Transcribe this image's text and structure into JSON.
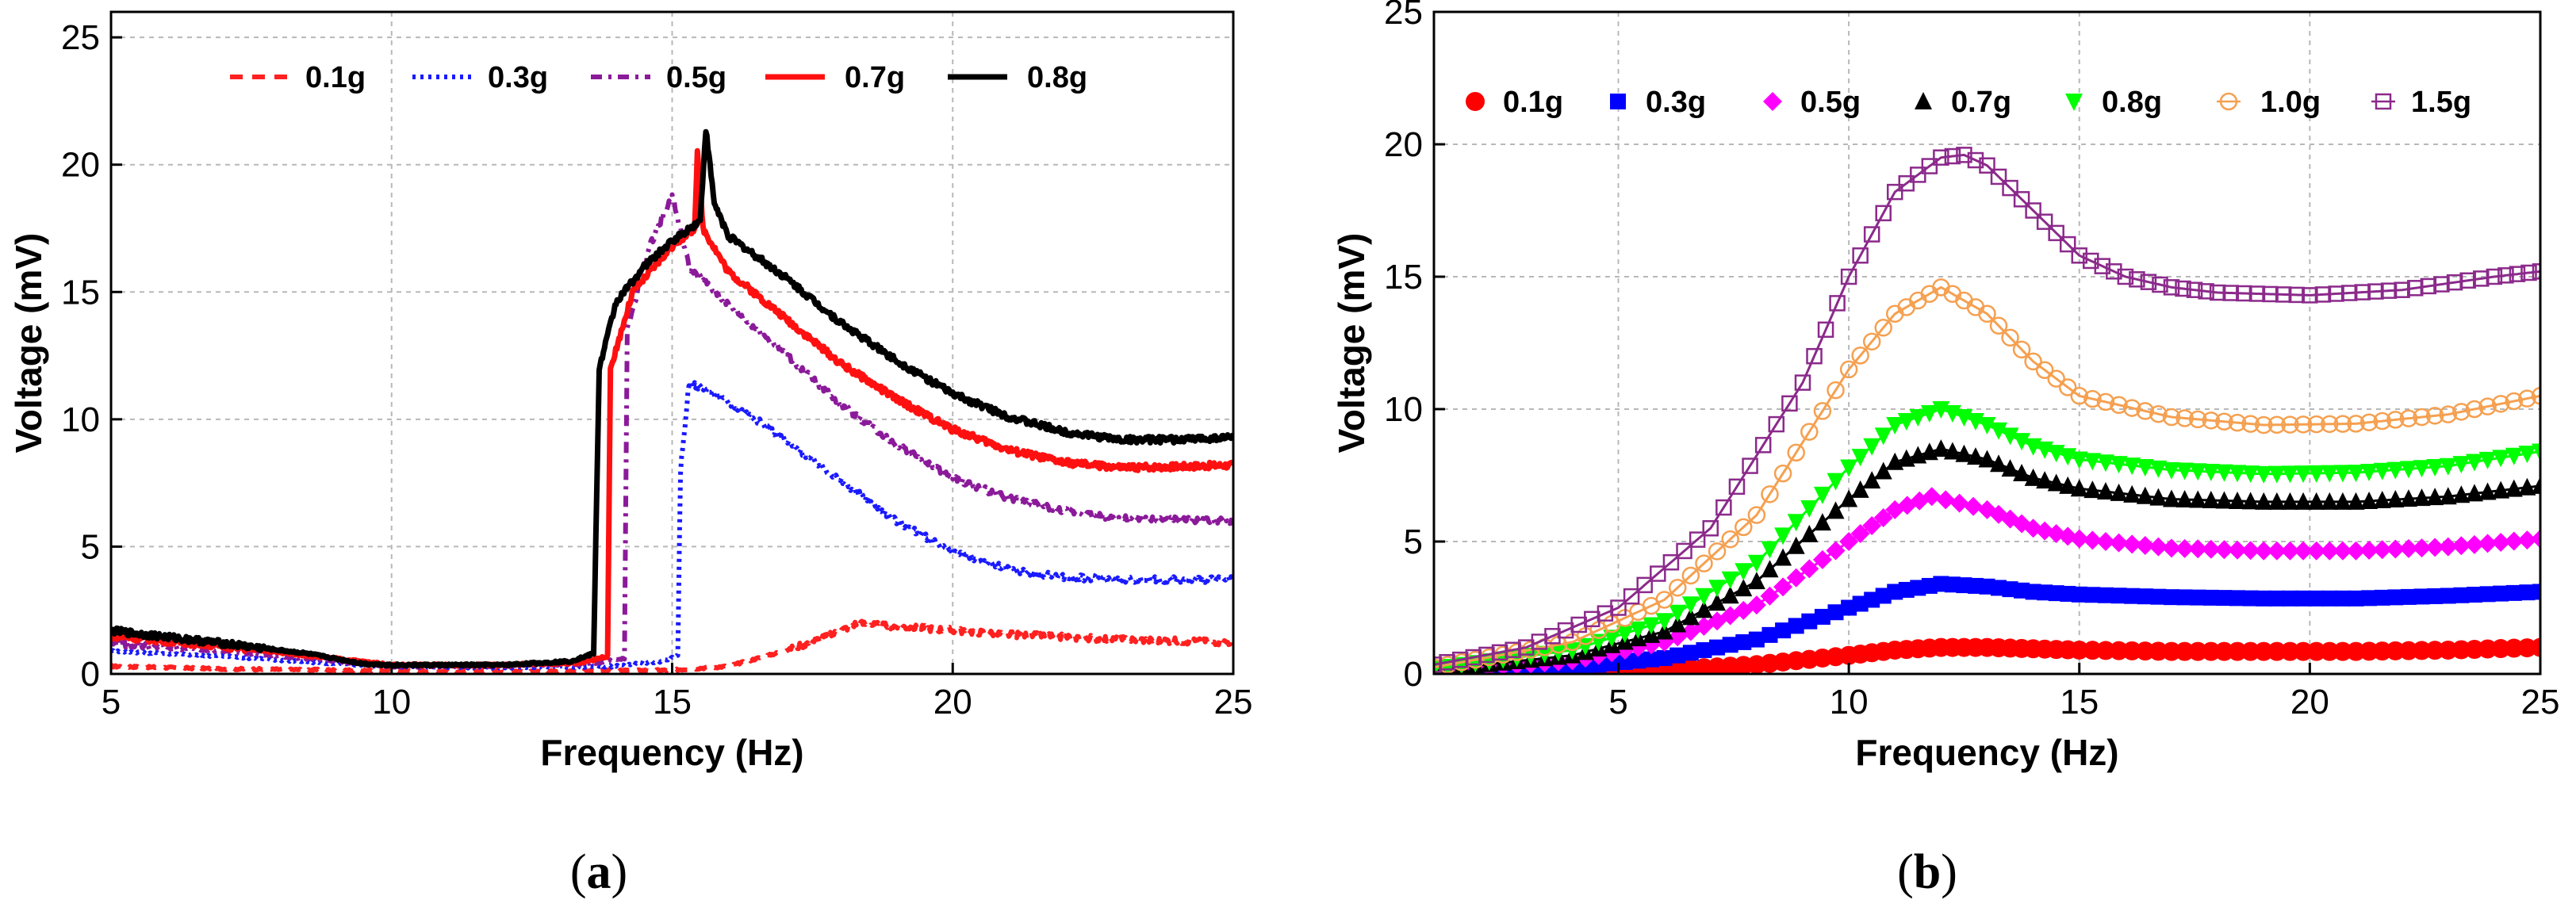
{
  "chart_data": [
    {
      "id": "a",
      "type": "line",
      "caption": "(a)",
      "xlabel": "Frequency (Hz)",
      "ylabel": "Voltage (mV)",
      "xlim": [
        5,
        25
      ],
      "ylim": [
        0,
        26
      ],
      "xticks": [
        5,
        10,
        15,
        20,
        25
      ],
      "yticks": [
        0,
        5,
        10,
        15,
        20,
        25
      ],
      "grid": true,
      "legend_position": "top",
      "series": [
        {
          "name": "0.1g",
          "color": "#ff2020",
          "style": "dashed",
          "points": [
            [
              5,
              0.3
            ],
            [
              7,
              0.2
            ],
            [
              9,
              0.15
            ],
            [
              11,
              0.1
            ],
            [
              13,
              0.1
            ],
            [
              15,
              0.15
            ],
            [
              16,
              0.3
            ],
            [
              17,
              0.9
            ],
            [
              17.8,
              1.5
            ],
            [
              18.3,
              2.0
            ],
            [
              18.7,
              1.9
            ],
            [
              19.5,
              1.8
            ],
            [
              21,
              1.55
            ],
            [
              23,
              1.35
            ],
            [
              25,
              1.25
            ]
          ]
        },
        {
          "name": "0.3g",
          "color": "#1a1aff",
          "style": "dotted",
          "points": [
            [
              5,
              0.9
            ],
            [
              7,
              0.7
            ],
            [
              9,
              0.4
            ],
            [
              10,
              0.3
            ],
            [
              12,
              0.25
            ],
            [
              14,
              0.3
            ],
            [
              14.8,
              0.5
            ],
            [
              15.1,
              0.7
            ],
            [
              15.15,
              8.0
            ],
            [
              15.3,
              11.4
            ],
            [
              15.6,
              11.2
            ],
            [
              16.5,
              10.0
            ],
            [
              18,
              7.6
            ],
            [
              19,
              6.0
            ],
            [
              20,
              4.8
            ],
            [
              21,
              4.1
            ],
            [
              22,
              3.8
            ],
            [
              23,
              3.7
            ],
            [
              25,
              3.7
            ]
          ]
        },
        {
          "name": "0.5g",
          "color": "#8b1a9a",
          "style": "dashdot",
          "points": [
            [
              5,
              1.2
            ],
            [
              7,
              0.9
            ],
            [
              9,
              0.5
            ],
            [
              10,
              0.3
            ],
            [
              12,
              0.3
            ],
            [
              13.5,
              0.4
            ],
            [
              14.15,
              0.6
            ],
            [
              14.2,
              13.5
            ],
            [
              14.6,
              16.8
            ],
            [
              15.0,
              18.8
            ],
            [
              15.3,
              16.0
            ],
            [
              16,
              14.5
            ],
            [
              17,
              12.6
            ],
            [
              18,
              10.6
            ],
            [
              19,
              9.0
            ],
            [
              20,
              7.7
            ],
            [
              21,
              6.9
            ],
            [
              22,
              6.4
            ],
            [
              23,
              6.1
            ],
            [
              25,
              6.0
            ]
          ]
        },
        {
          "name": "0.7g",
          "color": "#ff1010",
          "style": "solid",
          "points": [
            [
              5,
              1.5
            ],
            [
              7,
              1.1
            ],
            [
              9,
              0.6
            ],
            [
              10,
              0.35
            ],
            [
              12,
              0.35
            ],
            [
              13.4,
              0.45
            ],
            [
              13.85,
              0.7
            ],
            [
              13.9,
              12.0
            ],
            [
              14.3,
              15.0
            ],
            [
              15.0,
              16.8
            ],
            [
              15.4,
              17.5
            ],
            [
              15.45,
              20.6
            ],
            [
              15.55,
              17.5
            ],
            [
              16,
              15.8
            ],
            [
              17,
              14.0
            ],
            [
              18,
              12.2
            ],
            [
              19,
              10.8
            ],
            [
              20,
              9.6
            ],
            [
              21,
              8.8
            ],
            [
              22,
              8.3
            ],
            [
              23,
              8.1
            ],
            [
              25,
              8.2
            ]
          ]
        },
        {
          "name": "0.8g",
          "color": "#000000",
          "style": "solid",
          "points": [
            [
              5,
              1.7
            ],
            [
              7,
              1.2
            ],
            [
              8.5,
              0.8
            ],
            [
              9.5,
              0.4
            ],
            [
              10,
              0.35
            ],
            [
              12,
              0.35
            ],
            [
              13.2,
              0.5
            ],
            [
              13.6,
              0.8
            ],
            [
              13.7,
              12.0
            ],
            [
              14.0,
              14.6
            ],
            [
              14.5,
              16.0
            ],
            [
              15.0,
              17.0
            ],
            [
              15.5,
              17.8
            ],
            [
              15.6,
              21.4
            ],
            [
              15.75,
              18.5
            ],
            [
              16,
              17.2
            ],
            [
              17,
              15.6
            ],
            [
              18,
              13.8
            ],
            [
              19,
              12.3
            ],
            [
              20,
              11.0
            ],
            [
              21,
              10.1
            ],
            [
              22,
              9.5
            ],
            [
              23,
              9.2
            ],
            [
              24,
              9.2
            ],
            [
              25,
              9.3
            ]
          ]
        }
      ]
    },
    {
      "id": "b",
      "type": "line",
      "caption": "(b)",
      "xlabel": "Frequency (Hz)",
      "ylabel": "Voltage (mV)",
      "xlim": [
        1,
        25
      ],
      "ylim": [
        0,
        25
      ],
      "xticks": [
        5,
        10,
        15,
        20,
        25
      ],
      "yticks": [
        0,
        5,
        10,
        15,
        20,
        25
      ],
      "grid": true,
      "legend_position": "top",
      "series": [
        {
          "name": "0.1g",
          "color": "#ff0000",
          "marker": "circle-filled",
          "points": [
            [
              1,
              0.01
            ],
            [
              4,
              0.05
            ],
            [
              6,
              0.15
            ],
            [
              8,
              0.35
            ],
            [
              10,
              0.7
            ],
            [
              11,
              0.9
            ],
            [
              12,
              1.0
            ],
            [
              13,
              1.0
            ],
            [
              14,
              0.95
            ],
            [
              15,
              0.9
            ],
            [
              17,
              0.85
            ],
            [
              19,
              0.85
            ],
            [
              21,
              0.85
            ],
            [
              23,
              0.9
            ],
            [
              25,
              1.0
            ]
          ]
        },
        {
          "name": "0.3g",
          "color": "#0000ff",
          "marker": "square-filled",
          "points": [
            [
              1,
              0.05
            ],
            [
              4,
              0.25
            ],
            [
              6,
              0.6
            ],
            [
              8,
              1.3
            ],
            [
              10,
              2.5
            ],
            [
              11,
              3.1
            ],
            [
              12,
              3.4
            ],
            [
              13,
              3.3
            ],
            [
              14,
              3.1
            ],
            [
              15,
              3.0
            ],
            [
              17,
              2.9
            ],
            [
              19,
              2.85
            ],
            [
              21,
              2.85
            ],
            [
              23,
              2.95
            ],
            [
              25,
              3.1
            ]
          ]
        },
        {
          "name": "0.5g",
          "color": "#ff00ff",
          "marker": "diamond-filled",
          "points": [
            [
              1,
              0.1
            ],
            [
              4,
              0.5
            ],
            [
              6,
              1.2
            ],
            [
              8,
              2.6
            ],
            [
              10,
              5.0
            ],
            [
              11,
              6.2
            ],
            [
              11.8,
              6.7
            ],
            [
              13,
              6.2
            ],
            [
              14,
              5.5
            ],
            [
              15,
              5.1
            ],
            [
              17,
              4.75
            ],
            [
              19,
              4.65
            ],
            [
              21,
              4.65
            ],
            [
              23,
              4.8
            ],
            [
              25,
              5.1
            ]
          ]
        },
        {
          "name": "0.7g",
          "color": "#000000",
          "marker": "triangle-up-filled",
          "points": [
            [
              1,
              0.15
            ],
            [
              4,
              0.7
            ],
            [
              6,
              1.6
            ],
            [
              8,
              3.5
            ],
            [
              10,
              6.6
            ],
            [
              11,
              8.0
            ],
            [
              12,
              8.5
            ],
            [
              13,
              8.1
            ],
            [
              14,
              7.4
            ],
            [
              15,
              7.0
            ],
            [
              17,
              6.6
            ],
            [
              19,
              6.5
            ],
            [
              21,
              6.5
            ],
            [
              23,
              6.7
            ],
            [
              25,
              7.1
            ]
          ]
        },
        {
          "name": "0.8g",
          "color": "#00ff00",
          "marker": "triangle-down-filled",
          "points": [
            [
              1,
              0.2
            ],
            [
              4,
              0.9
            ],
            [
              6,
              2.0
            ],
            [
              8,
              4.2
            ],
            [
              10,
              7.8
            ],
            [
              11,
              9.4
            ],
            [
              12,
              10.0
            ],
            [
              13,
              9.4
            ],
            [
              14,
              8.6
            ],
            [
              15,
              8.1
            ],
            [
              17,
              7.7
            ],
            [
              19,
              7.55
            ],
            [
              21,
              7.6
            ],
            [
              23,
              7.85
            ],
            [
              25,
              8.4
            ]
          ]
        },
        {
          "name": "1.0g",
          "color": "#f5a050",
          "marker": "circle-open",
          "points": [
            [
              1,
              0.25
            ],
            [
              4,
              1.2
            ],
            [
              6,
              2.8
            ],
            [
              8,
              6.0
            ],
            [
              10,
              11.5
            ],
            [
              11,
              13.6
            ],
            [
              12,
              14.6
            ],
            [
              13,
              13.6
            ],
            [
              14,
              11.8
            ],
            [
              15,
              10.5
            ],
            [
              17,
              9.7
            ],
            [
              19,
              9.4
            ],
            [
              21,
              9.45
            ],
            [
              23,
              9.8
            ],
            [
              25,
              10.5
            ]
          ]
        },
        {
          "name": "1.5g",
          "color": "#8b2a8b",
          "marker": "square-open",
          "points": [
            [
              1,
              0.35
            ],
            [
              3,
              1.0
            ],
            [
              5,
              2.5
            ],
            [
              7,
              5.5
            ],
            [
              9,
              11.0
            ],
            [
              10,
              15.0
            ],
            [
              11,
              18.2
            ],
            [
              12,
              19.5
            ],
            [
              12.5,
              19.6
            ],
            [
              13,
              19.2
            ],
            [
              14,
              17.5
            ],
            [
              15,
              15.8
            ],
            [
              16,
              15.0
            ],
            [
              17,
              14.6
            ],
            [
              18,
              14.4
            ],
            [
              20,
              14.3
            ],
            [
              22,
              14.5
            ],
            [
              24,
              15.0
            ],
            [
              25,
              15.2
            ]
          ]
        }
      ]
    }
  ]
}
